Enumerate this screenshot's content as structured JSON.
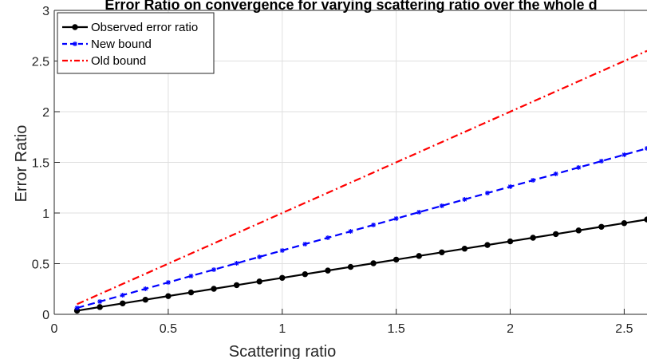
{
  "chart_data": {
    "type": "line",
    "title": "Error Ratio on convergence for varying scattering ratio over the whole d",
    "xlabel": "Scattering ratio",
    "ylabel": "Error Ratio",
    "xlim": [
      0,
      2.6
    ],
    "ylim": [
      0,
      3
    ],
    "xticks": [
      0,
      0.5,
      1,
      1.5,
      2,
      2.5
    ],
    "xtick_labels": [
      "0",
      "0.5",
      "1",
      "1.5",
      "2",
      "2.5"
    ],
    "yticks": [
      0,
      0.5,
      1,
      1.5,
      2,
      2.5,
      3
    ],
    "ytick_labels": [
      "0",
      "0.5",
      "1",
      "1.5",
      "2",
      "2.5",
      "3"
    ],
    "grid": true,
    "legend_position": "top-left",
    "x": [
      0.1,
      0.2,
      0.3,
      0.4,
      0.5,
      0.6,
      0.7,
      0.8,
      0.9,
      1.0,
      1.1,
      1.2,
      1.3,
      1.4,
      1.5,
      1.6,
      1.7,
      1.8,
      1.9,
      2.0,
      2.1,
      2.2,
      2.3,
      2.4,
      2.5,
      2.6
    ],
    "series": [
      {
        "name": "Observed error ratio",
        "color": "#000000",
        "line_style": "solid",
        "marker": "circle",
        "values": [
          0.036,
          0.072,
          0.108,
          0.144,
          0.18,
          0.216,
          0.252,
          0.288,
          0.324,
          0.36,
          0.396,
          0.432,
          0.468,
          0.504,
          0.54,
          0.576,
          0.612,
          0.648,
          0.684,
          0.72,
          0.756,
          0.792,
          0.828,
          0.864,
          0.9,
          0.936
        ]
      },
      {
        "name": "New bound",
        "color": "#0000ff",
        "line_style": "dashed",
        "marker": "star",
        "values": [
          0.063,
          0.126,
          0.189,
          0.252,
          0.315,
          0.378,
          0.441,
          0.504,
          0.567,
          0.63,
          0.693,
          0.756,
          0.819,
          0.882,
          0.945,
          1.008,
          1.071,
          1.134,
          1.197,
          1.26,
          1.323,
          1.386,
          1.449,
          1.512,
          1.575,
          1.638
        ]
      },
      {
        "name": "Old bound",
        "color": "#ff0000",
        "line_style": "dash-dot",
        "marker": "none",
        "values": [
          0.1,
          0.2,
          0.3,
          0.4,
          0.5,
          0.6,
          0.7,
          0.8,
          0.9,
          1.0,
          1.1,
          1.2,
          1.3,
          1.4,
          1.5,
          1.6,
          1.7,
          1.8,
          1.9,
          2.0,
          2.1,
          2.2,
          2.3,
          2.4,
          2.5,
          2.6
        ]
      }
    ]
  }
}
